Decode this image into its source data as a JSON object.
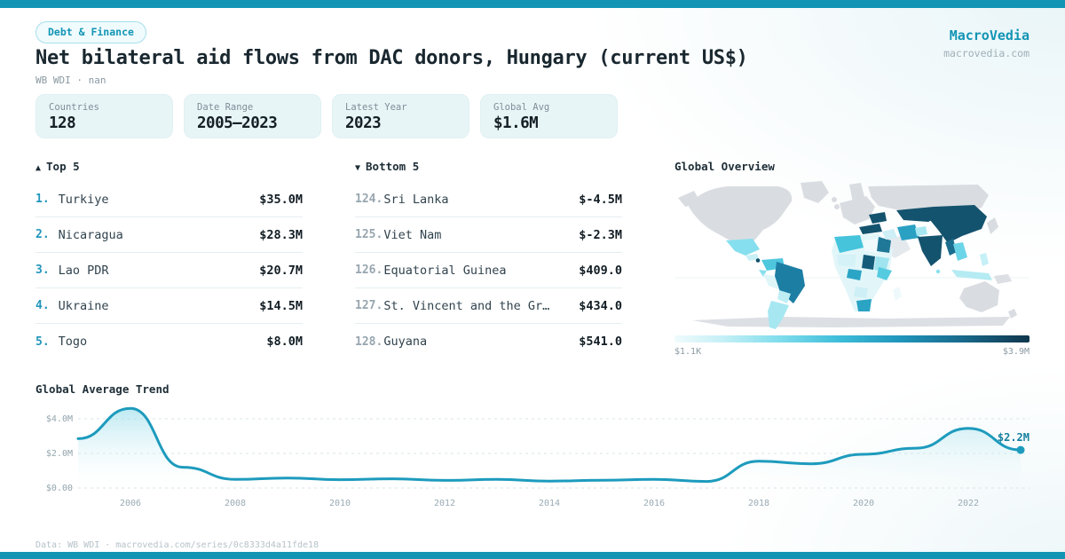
{
  "colors": {
    "accent": "#1295b5",
    "chart_line": "#1d9bbd",
    "map_no_data": "#d9dde1",
    "map_scale_low": "#e8f9fb",
    "map_scale_high": "#14536e",
    "card_bg": "#e8f5f6",
    "dark_text": "#19272f",
    "muted_text": "#8a9aa3"
  },
  "header": {
    "badge": "Debt & Finance",
    "title": "Net bilateral aid flows from DAC donors, Hungary (current US$)",
    "subtitle": "WB WDI · nan"
  },
  "brand": {
    "name": "MacroVedia",
    "domain": "macrovedia.com"
  },
  "stats": [
    {
      "label": "Countries",
      "value": "128"
    },
    {
      "label": "Date Range",
      "value": "2005–2023"
    },
    {
      "label": "Latest Year",
      "value": "2023"
    },
    {
      "label": "Global Avg",
      "value": "$1.6M"
    }
  ],
  "top5": {
    "icon": "▲",
    "label": "Top 5",
    "rows": [
      {
        "rank": "1.",
        "name": "Turkiye",
        "value": "$35.0M"
      },
      {
        "rank": "2.",
        "name": "Nicaragua",
        "value": "$28.3M"
      },
      {
        "rank": "3.",
        "name": "Lao PDR",
        "value": "$20.7M"
      },
      {
        "rank": "4.",
        "name": "Ukraine",
        "value": "$14.5M"
      },
      {
        "rank": "5.",
        "name": "Togo",
        "value": "$8.0M"
      }
    ]
  },
  "bottom5": {
    "icon": "▼",
    "label": "Bottom 5",
    "rows": [
      {
        "rank": "124.",
        "name": "Sri Lanka",
        "value": "$-4.5M"
      },
      {
        "rank": "125.",
        "name": "Viet Nam",
        "value": "$-2.3M"
      },
      {
        "rank": "126.",
        "name": "Equatorial Guinea",
        "value": "$409.0"
      },
      {
        "rank": "127.",
        "name": "St. Vincent and the Gr…",
        "value": "$434.0"
      },
      {
        "rank": "128.",
        "name": "Guyana",
        "value": "$541.0"
      }
    ]
  },
  "map": {
    "title": "Global Overview",
    "legend_min": "$1.1K",
    "legend_max": "$3.9M"
  },
  "trend": {
    "title": "Global Average Trend"
  },
  "chart_data": [
    {
      "type": "area",
      "title": "Global Average Trend",
      "x": [
        2005,
        2006,
        2007,
        2008,
        2009,
        2010,
        2011,
        2012,
        2013,
        2014,
        2015,
        2016,
        2017,
        2018,
        2019,
        2020,
        2021,
        2022,
        2023
      ],
      "values_usd": [
        2850000,
        4600000,
        1200000,
        500000,
        580000,
        480000,
        530000,
        440000,
        500000,
        400000,
        450000,
        500000,
        380000,
        1550000,
        1400000,
        1950000,
        2300000,
        3450000,
        2200000
      ],
      "end_label": "$2.2M",
      "ylim": [
        0,
        5000000
      ],
      "yticks": [
        {
          "v": 0,
          "label": "$0.00"
        },
        {
          "v": 2000000,
          "label": "$2.0M"
        },
        {
          "v": 4000000,
          "label": "$4.0M"
        }
      ],
      "xticks": [
        2006,
        2008,
        2010,
        2012,
        2014,
        2016,
        2018,
        2020,
        2022
      ],
      "grid": "dashed-horizontal",
      "legend": "none"
    },
    {
      "type": "choropleth",
      "title": "Global Overview",
      "colorbar": {
        "min_label": "$1.1K",
        "max_label": "$3.9M"
      },
      "high_value_regions": [
        "China",
        "India",
        "Kazakhstan",
        "Mongolia",
        "Pakistan",
        "Ukraine",
        "Turkey",
        "Chad",
        "Nicaragua",
        "Myanmar"
      ],
      "mid_value_regions": [
        "Brazil",
        "Iran",
        "Egypt",
        "South Africa",
        "Algeria",
        "Nigeria",
        "Colombia",
        "Ethiopia",
        "Sudan"
      ],
      "low_value_regions": [
        "Argentina",
        "Mexico",
        "Peru",
        "Bolivia",
        "Indonesia",
        "Afghanistan",
        "Sri Lanka",
        "Mali",
        "Angola"
      ],
      "no_data_regions": [
        "United States",
        "Canada",
        "Greenland",
        "Europe",
        "Russia",
        "Saudi Arabia",
        "Japan",
        "Australia",
        "Antarctica"
      ]
    }
  ],
  "footer": {
    "text": "Data: WB WDI · macrovedia.com/series/0c8333d4a11fde18"
  }
}
